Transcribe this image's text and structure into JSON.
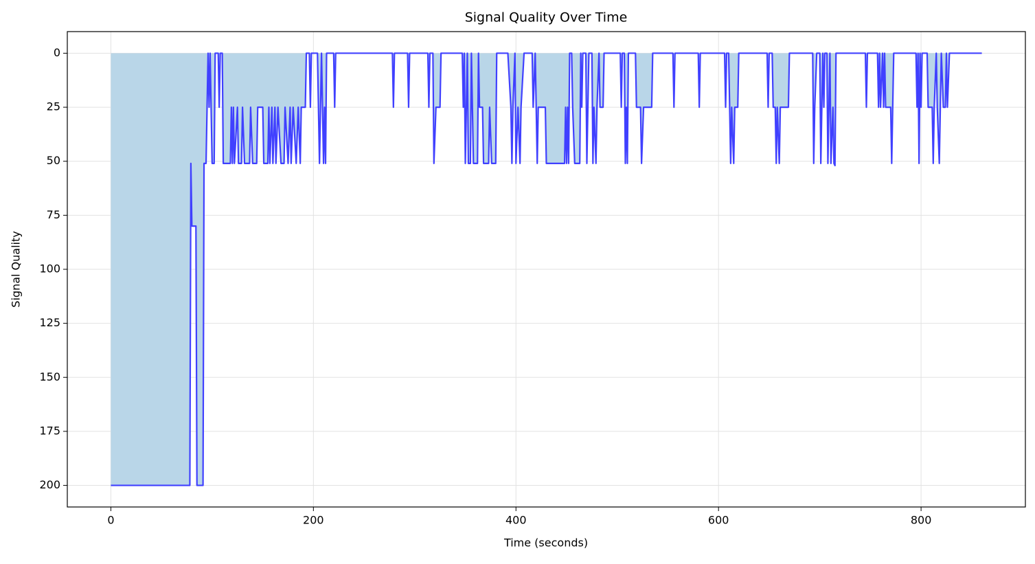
{
  "chart_data": {
    "type": "line",
    "title": "Signal Quality Over Time",
    "x_label": "Time (seconds)",
    "y_label": "Signal Quality",
    "x": [
      0,
      78,
      79,
      80,
      84,
      85,
      91,
      92,
      94,
      95,
      96,
      97,
      98,
      100,
      102,
      103,
      106,
      107,
      108,
      110,
      111,
      118,
      119,
      120,
      121,
      122,
      125,
      126,
      129,
      130,
      132,
      137,
      138,
      140,
      144,
      145,
      150,
      151,
      155,
      156,
      157,
      159,
      160,
      162,
      163,
      165,
      168,
      171,
      172,
      175,
      177,
      178,
      180,
      183,
      185,
      187,
      188,
      192,
      193,
      196,
      197,
      198,
      204,
      206,
      208,
      210,
      211,
      212,
      213,
      220,
      221,
      222,
      278,
      279,
      280,
      293,
      294,
      295,
      313,
      314,
      315,
      318,
      319,
      321,
      325,
      326,
      347,
      348,
      349,
      350,
      352,
      353,
      355,
      356,
      358,
      362,
      363,
      364,
      367,
      368,
      373,
      374,
      376,
      380,
      381,
      392,
      395,
      396,
      397,
      399,
      400,
      402,
      404,
      405,
      408,
      416,
      417,
      419,
      421,
      422,
      429,
      430,
      448,
      449,
      450,
      451,
      452,
      453,
      455,
      456,
      458,
      463,
      464,
      465,
      466,
      469,
      470,
      472,
      475,
      476,
      477,
      479,
      480,
      482,
      483,
      486,
      487,
      503,
      504,
      505,
      507,
      508,
      509,
      510,
      511,
      518,
      519,
      523,
      524,
      526,
      534,
      535,
      555,
      556,
      557,
      580,
      581,
      582,
      606,
      607,
      608,
      610,
      611,
      612,
      613,
      615,
      616,
      619,
      620,
      648,
      649,
      650,
      653,
      654,
      656,
      657,
      658,
      660,
      661,
      669,
      670,
      693,
      694,
      695,
      697,
      700,
      701,
      702,
      703,
      704,
      705,
      707,
      708,
      709,
      710,
      711,
      713,
      714,
      715,
      716,
      745,
      746,
      747,
      757,
      758,
      759,
      760,
      762,
      763,
      764,
      765,
      770,
      771,
      772,
      773,
      778,
      795,
      796,
      797,
      798,
      799,
      800,
      801,
      806,
      807,
      811,
      812,
      813,
      815,
      816,
      818,
      819,
      820,
      822,
      824,
      825,
      826,
      828,
      860
    ],
    "values": [
      200,
      200,
      51,
      80,
      80,
      200,
      200,
      51,
      51,
      25,
      0,
      25,
      0,
      51,
      51,
      0,
      0,
      25,
      0,
      0,
      51,
      51,
      25,
      51,
      25,
      51,
      25,
      51,
      51,
      25,
      51,
      51,
      25,
      51,
      51,
      25,
      25,
      51,
      51,
      25,
      51,
      25,
      51,
      25,
      51,
      25,
      51,
      51,
      25,
      51,
      25,
      51,
      25,
      51,
      25,
      51,
      25,
      25,
      0,
      0,
      25,
      0,
      0,
      51,
      0,
      51,
      25,
      51,
      0,
      0,
      25,
      0,
      0,
      25,
      0,
      0,
      25,
      0,
      0,
      25,
      0,
      0,
      51,
      25,
      25,
      0,
      0,
      25,
      0,
      51,
      0,
      51,
      51,
      0,
      51,
      51,
      0,
      25,
      25,
      51,
      51,
      25,
      51,
      51,
      0,
      0,
      25,
      51,
      25,
      0,
      51,
      25,
      51,
      25,
      0,
      0,
      25,
      0,
      51,
      25,
      25,
      51,
      51,
      25,
      51,
      25,
      51,
      0,
      0,
      25,
      51,
      51,
      0,
      25,
      0,
      0,
      51,
      0,
      0,
      51,
      25,
      51,
      25,
      0,
      25,
      25,
      0,
      0,
      25,
      0,
      0,
      51,
      25,
      51,
      0,
      0,
      25,
      25,
      51,
      25,
      25,
      0,
      0,
      25,
      0,
      0,
      25,
      0,
      0,
      25,
      0,
      0,
      25,
      51,
      25,
      51,
      25,
      25,
      0,
      0,
      25,
      0,
      0,
      25,
      25,
      51,
      25,
      51,
      25,
      25,
      0,
      0,
      51,
      25,
      0,
      0,
      51,
      25,
      0,
      25,
      0,
      0,
      51,
      25,
      0,
      51,
      25,
      51,
      52,
      0,
      0,
      25,
      0,
      0,
      25,
      0,
      25,
      0,
      25,
      0,
      25,
      25,
      51,
      25,
      0,
      0,
      0,
      25,
      0,
      51,
      0,
      25,
      0,
      0,
      25,
      25,
      51,
      25,
      0,
      25,
      51,
      25,
      0,
      25,
      25,
      0,
      25,
      0,
      0
    ],
    "color": "#4040ff",
    "fill_color": "#b9d6e8",
    "xlim": [
      -43,
      903
    ],
    "xticks": [
      0,
      200,
      400,
      600,
      800
    ],
    "ylim": [
      210,
      -10
    ],
    "yticks": [
      0,
      25,
      50,
      75,
      100,
      125,
      150,
      175,
      200
    ],
    "grid": true
  }
}
